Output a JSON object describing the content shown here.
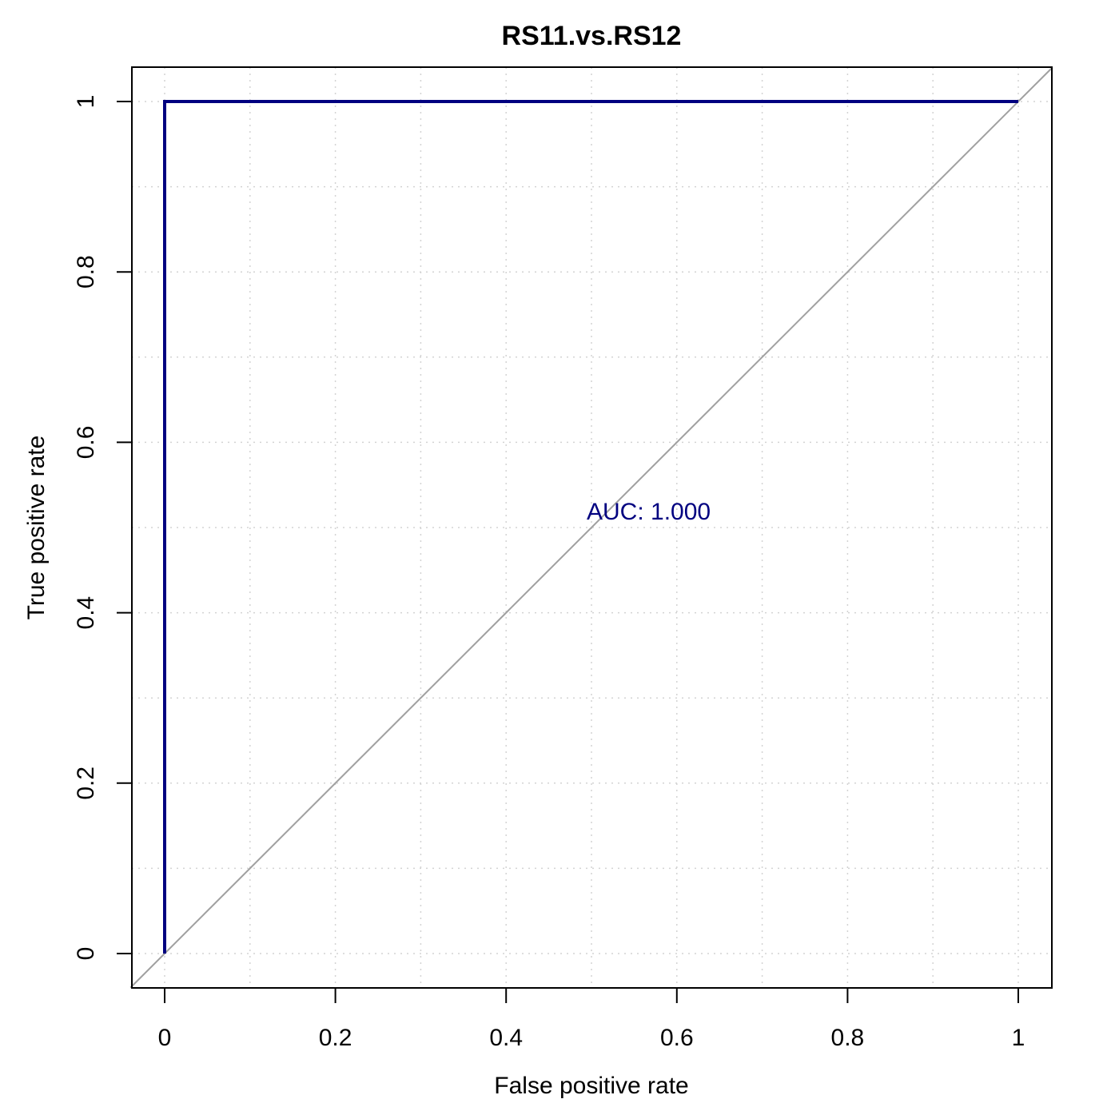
{
  "chart_data": {
    "type": "line",
    "title": "RS11.vs.RS12",
    "xlabel": "False positive rate",
    "ylabel": "True positive rate",
    "xlim": [
      0,
      1
    ],
    "ylim": [
      0,
      1
    ],
    "x_ticks": [
      0,
      0.2,
      0.4,
      0.6,
      0.8,
      1
    ],
    "y_ticks": [
      0,
      0.2,
      0.4,
      0.6,
      0.8,
      1
    ],
    "x_tick_labels": [
      "0",
      "0.2",
      "0.4",
      "0.6",
      "0.8",
      "1"
    ],
    "y_tick_labels": [
      "0",
      "0.2",
      "0.4",
      "0.6",
      "0.8",
      "1"
    ],
    "grid": true,
    "grid_step": 0.1,
    "series": [
      {
        "x": [
          0,
          0,
          1
        ],
        "y": [
          0,
          1,
          1
        ],
        "color": "#000080"
      }
    ],
    "reference_line": {
      "x": [
        -0.04,
        1.04
      ],
      "y": [
        -0.04,
        1.04
      ],
      "color": "#a0a0a0"
    },
    "annotation": {
      "text": "AUC: 1.000",
      "x": 0.5,
      "y": 0.5,
      "color": "#000080"
    }
  }
}
